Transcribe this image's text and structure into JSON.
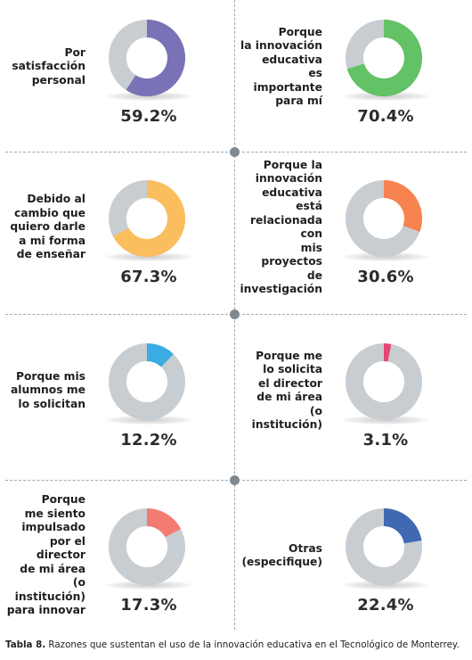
{
  "chart_data": {
    "type": "pie",
    "variant": "donut",
    "charts": [
      {
        "label": "Por satisfacción personal",
        "lines": [
          "Por",
          "satisfacción",
          "personal"
        ],
        "value": 59.2,
        "value_text": "59.2%",
        "color": "#7a72b6"
      },
      {
        "label": "Porque la innovación educativa es importante para mí",
        "lines": [
          "Porque",
          "la innovación",
          "educativa",
          "es importante",
          "para mí"
        ],
        "value": 70.4,
        "value_text": "70.4%",
        "color": "#63c166"
      },
      {
        "label": "Debido al cambio que quiero darle a mi forma de enseñar",
        "lines": [
          "Debido al",
          "cambio que",
          "quiero darle",
          "a mi forma",
          "de enseñar"
        ],
        "value": 67.3,
        "value_text": "67.3%",
        "color": "#fbbe5f"
      },
      {
        "label": "Porque la innovación educativa está relacionada con mis proyectos de investigación",
        "lines": [
          "Porque la",
          "innovación",
          "educativa está",
          "relacionada con",
          "mis proyectos",
          "de investigación"
        ],
        "value": 30.6,
        "value_text": "30.6%",
        "color": "#f6834f"
      },
      {
        "label": "Porque mis alumnos me lo solicitan",
        "lines": [
          "Porque mis",
          "alumnos me",
          "lo solicitan"
        ],
        "value": 12.2,
        "value_text": "12.2%",
        "color": "#38ace3"
      },
      {
        "label": "Porque me lo solicita el director de mi área (o institución)",
        "lines": [
          "Porque me",
          "lo solicita",
          "el director",
          "de mi área",
          "(o institución)"
        ],
        "value": 3.1,
        "value_text": "3.1%",
        "color": "#e64673"
      },
      {
        "label": "Porque me siento impulsado por el director de mi área (o institución) para innovar",
        "lines": [
          "Porque",
          "me siento",
          "impulsado",
          "por el director",
          "de mi área",
          "(o institución)",
          "para innovar"
        ],
        "value": 17.3,
        "value_text": "17.3%",
        "color": "#f47b72"
      },
      {
        "label": "Otras (especifique)",
        "lines": [
          "Otras",
          "(especifique)"
        ],
        "value": 22.4,
        "value_text": "22.4%",
        "color": "#4169b1"
      }
    ],
    "remainder_color": "#c8cdd2",
    "unit": "%"
  },
  "caption": {
    "label": "Tabla 8.",
    "text": " Razones que sustentan el uso de la innovación educativa en el Tecnológico de Monterrey."
  }
}
